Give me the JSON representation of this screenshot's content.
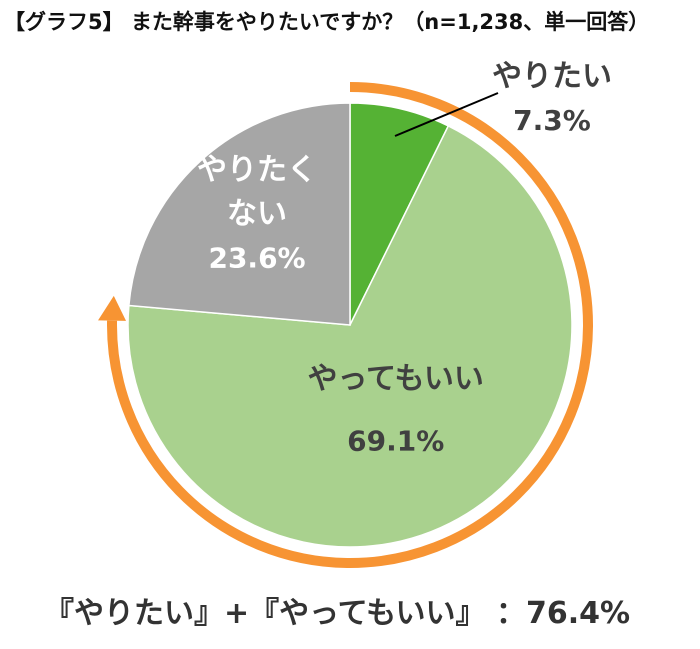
{
  "title": "【グラフ5】 また幹事をやりたいですか？（n=1,238、単一回答）",
  "summary": "『やりたい』+『やってもいい』 ：76.4%",
  "chart_data": {
    "type": "pie",
    "title": "【グラフ5】 また幹事をやりたいですか？（n=1,238、単一回答）",
    "n": 1238,
    "slices": [
      {
        "label_lines": [
          "やりたい"
        ],
        "value": 7.3,
        "value_label": "7.3%",
        "color": "#55b234",
        "label_color": "#404040"
      },
      {
        "label_lines": [
          "やってもいい"
        ],
        "value": 69.1,
        "value_label": "69.1%",
        "color": "#a9d18e",
        "label_color": "#404040"
      },
      {
        "label_lines": [
          "やりたく",
          "ない"
        ],
        "value": 23.6,
        "value_label": "23.6%",
        "color": "#a6a6a6",
        "label_color": "#ffffff"
      }
    ],
    "highlight": {
      "label": "『やりたい』+『やってもいい』",
      "value": 76.4,
      "value_label": "76.4%",
      "arrow_color": "#f79433"
    }
  }
}
